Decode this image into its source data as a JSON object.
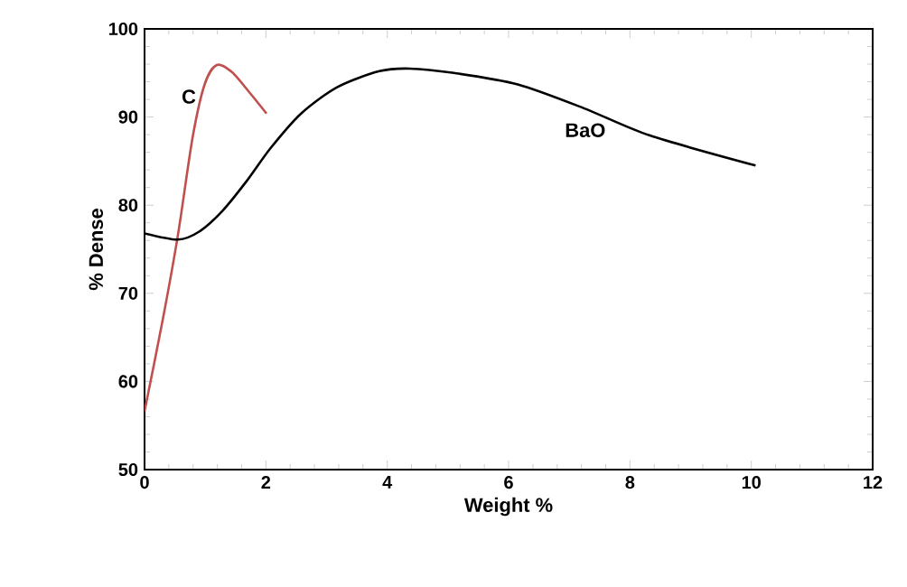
{
  "chart_data": {
    "type": "line",
    "xlabel": "Weight %",
    "ylabel": "% Dense",
    "xlim": [
      0,
      12
    ],
    "ylim": [
      50,
      100
    ],
    "xticks": [
      0,
      2,
      4,
      6,
      8,
      10,
      12
    ],
    "yticks": [
      50,
      60,
      70,
      80,
      90,
      100
    ],
    "grid": false,
    "legend": false,
    "marker": "none",
    "line_style": "solid",
    "series": [
      {
        "name": "C",
        "color": "#c0504d",
        "x": [
          0,
          0.3,
          0.55,
          0.79,
          0.99,
          1.19,
          1.44,
          1.74,
          2.01
        ],
        "values": [
          56.6,
          67,
          76.6,
          87.6,
          93.7,
          95.9,
          95.1,
          92.7,
          90.4
        ]
      },
      {
        "name": "BaO",
        "color": "#000000",
        "x": [
          0,
          0.55,
          0.9,
          1.29,
          1.69,
          2.08,
          2.58,
          3.18,
          3.87,
          4.37,
          5.1,
          6.15,
          7.24,
          8.33,
          10.07
        ],
        "values": [
          76.8,
          76.1,
          77.0,
          79.4,
          82.8,
          86.5,
          90.4,
          93.4,
          95.2,
          95.5,
          95.0,
          93.7,
          91.0,
          87.9,
          84.5
        ]
      }
    ]
  }
}
